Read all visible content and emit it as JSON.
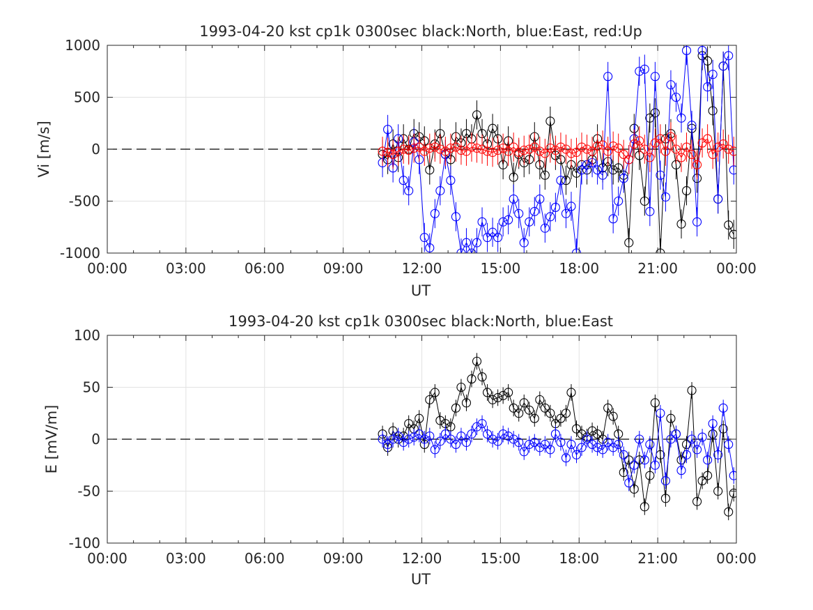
{
  "colors": {
    "north": "#000000",
    "east": "#0000ff",
    "up": "#ff0000",
    "grid": "#e2e2e2",
    "axis": "#262626"
  },
  "chart_data": [
    {
      "type": "scatter",
      "title": "1993-04-20 kst cp1k 0300sec black:North, blue:East, red:Up",
      "xlabel": "UT",
      "ylabel": "Vi [m/s]",
      "xlim": [
        0,
        24
      ],
      "ylim": [
        -1000,
        1000
      ],
      "xticks": [
        0,
        3,
        6,
        9,
        12,
        15,
        18,
        21,
        24
      ],
      "xtick_labels": [
        "00:00",
        "03:00",
        "06:00",
        "09:00",
        "12:00",
        "15:00",
        "18:00",
        "21:00",
        "00:00"
      ],
      "yticks": [
        -1000,
        -500,
        0,
        500,
        1000
      ],
      "ytick_labels": [
        "-1000",
        "-500",
        "0",
        "500",
        "1000"
      ],
      "grid": true,
      "zero_line": "dashed",
      "series": [
        {
          "name": "North",
          "color": "#000000",
          "x": [
            10.5,
            10.7,
            10.9,
            11.1,
            11.3,
            11.5,
            11.7,
            11.9,
            12.1,
            12.3,
            12.5,
            12.7,
            12.9,
            13.1,
            13.3,
            13.5,
            13.7,
            13.9,
            14.1,
            14.3,
            14.5,
            14.7,
            14.9,
            15.1,
            15.3,
            15.5,
            15.7,
            15.9,
            16.1,
            16.3,
            16.5,
            16.7,
            16.9,
            17.1,
            17.3,
            17.5,
            17.7,
            17.9,
            18.1,
            18.3,
            18.5,
            18.7,
            18.9,
            19.1,
            19.3,
            19.5,
            19.7,
            19.9,
            20.1,
            20.3,
            20.5,
            20.7,
            20.9,
            21.1,
            21.3,
            21.5,
            21.7,
            21.9,
            22.1,
            22.3,
            22.5,
            22.7,
            22.9,
            23.1,
            23.3,
            23.5,
            23.7,
            23.9
          ],
          "values": [
            -50,
            -100,
            50,
            -80,
            100,
            0,
            150,
            120,
            80,
            -200,
            50,
            150,
            -50,
            -100,
            120,
            60,
            150,
            100,
            330,
            150,
            50,
            200,
            100,
            -150,
            80,
            -270,
            -50,
            -130,
            -100,
            120,
            -150,
            -250,
            270,
            -60,
            -100,
            -300,
            -150,
            -230,
            -150,
            -200,
            -100,
            100,
            -180,
            -120,
            -200,
            -180,
            -250,
            -900,
            200,
            -60,
            -500,
            300,
            350,
            -1000,
            100,
            150,
            -150,
            -720,
            -400,
            200,
            -280,
            900,
            850,
            370,
            -480,
            800,
            -730,
            -820
          ]
        },
        {
          "name": "East",
          "color": "#0000ff",
          "x": [
            10.5,
            10.7,
            10.9,
            11.1,
            11.3,
            11.5,
            11.7,
            11.9,
            12.1,
            12.3,
            12.5,
            12.7,
            12.9,
            13.1,
            13.3,
            13.5,
            13.7,
            13.9,
            14.1,
            14.3,
            14.5,
            14.7,
            14.9,
            15.1,
            15.3,
            15.5,
            15.7,
            15.9,
            16.1,
            16.3,
            16.5,
            16.7,
            16.9,
            17.1,
            17.3,
            17.5,
            17.7,
            17.9,
            18.1,
            18.3,
            18.5,
            18.7,
            18.9,
            19.1,
            19.3,
            19.5,
            19.7,
            19.9,
            20.1,
            20.3,
            20.5,
            20.7,
            20.9,
            21.1,
            21.3,
            21.5,
            21.7,
            21.9,
            22.1,
            22.3,
            22.5,
            22.7,
            22.9,
            23.1,
            23.3,
            23.5,
            23.7,
            23.9
          ],
          "values": [
            -130,
            190,
            -180,
            100,
            -300,
            -400,
            70,
            -100,
            -850,
            -950,
            -620,
            -400,
            -50,
            -300,
            -650,
            -1000,
            -900,
            -1000,
            -900,
            -700,
            -850,
            -800,
            -850,
            -700,
            -680,
            -480,
            -620,
            -900,
            -700,
            -600,
            -480,
            -760,
            -650,
            -560,
            -300,
            -620,
            -550,
            -1000,
            -200,
            -150,
            -130,
            -200,
            -250,
            700,
            -670,
            -500,
            -280,
            -100,
            100,
            750,
            770,
            -600,
            700,
            -250,
            -460,
            620,
            500,
            300,
            950,
            230,
            -700,
            950,
            600,
            720,
            -480,
            800,
            900,
            -200
          ]
        },
        {
          "name": "Up",
          "color": "#ff0000",
          "x": [
            10.5,
            10.7,
            10.9,
            11.1,
            11.3,
            11.5,
            11.7,
            11.9,
            12.1,
            12.3,
            12.5,
            12.7,
            12.9,
            13.1,
            13.3,
            13.5,
            13.7,
            13.9,
            14.1,
            14.3,
            14.5,
            14.7,
            14.9,
            15.1,
            15.3,
            15.5,
            15.7,
            15.9,
            16.1,
            16.3,
            16.5,
            16.7,
            16.9,
            17.1,
            17.3,
            17.5,
            17.7,
            17.9,
            18.1,
            18.3,
            18.5,
            18.7,
            18.9,
            19.1,
            19.3,
            19.5,
            19.7,
            19.9,
            20.1,
            20.3,
            20.5,
            20.7,
            20.9,
            21.1,
            21.3,
            21.5,
            21.7,
            21.9,
            22.1,
            22.3,
            22.5,
            22.7,
            22.9,
            23.1,
            23.3,
            23.5,
            23.7,
            23.9
          ],
          "values": [
            -20,
            -30,
            -50,
            -20,
            0,
            -10,
            10,
            20,
            -20,
            10,
            20,
            0,
            -20,
            10,
            20,
            -10,
            -20,
            20,
            10,
            0,
            -20,
            -30,
            -10,
            10,
            -20,
            20,
            -30,
            -10,
            0,
            20,
            -20,
            -40,
            10,
            -10,
            20,
            0,
            -40,
            -30,
            20,
            0,
            -20,
            30,
            40,
            -20,
            30,
            10,
            -50,
            -100,
            50,
            80,
            0,
            -80,
            60,
            100,
            -20,
            120,
            0,
            -80,
            20,
            -50,
            -150,
            60,
            100,
            -50,
            20,
            50,
            0,
            -20
          ]
        }
      ]
    },
    {
      "type": "scatter",
      "title": "1993-04-20 kst cp1k 0300sec black:North, blue:East",
      "xlabel": "UT",
      "ylabel": "E [mV/m]",
      "xlim": [
        0,
        24
      ],
      "ylim": [
        -100,
        100
      ],
      "xticks": [
        0,
        3,
        6,
        9,
        12,
        15,
        18,
        21,
        24
      ],
      "xtick_labels": [
        "00:00",
        "03:00",
        "06:00",
        "09:00",
        "12:00",
        "15:00",
        "18:00",
        "21:00",
        "00:00"
      ],
      "yticks": [
        -100,
        -50,
        0,
        50,
        100
      ],
      "ytick_labels": [
        "-100",
        "-50",
        "0",
        "50",
        "100"
      ],
      "grid": true,
      "zero_line": "dashed",
      "series": [
        {
          "name": "North",
          "color": "#000000",
          "x": [
            10.5,
            10.7,
            10.9,
            11.1,
            11.3,
            11.5,
            11.7,
            11.9,
            12.1,
            12.3,
            12.5,
            12.7,
            12.9,
            13.1,
            13.3,
            13.5,
            13.7,
            13.9,
            14.1,
            14.3,
            14.5,
            14.7,
            14.9,
            15.1,
            15.3,
            15.5,
            15.7,
            15.9,
            16.1,
            16.3,
            16.5,
            16.7,
            16.9,
            17.1,
            17.3,
            17.5,
            17.7,
            17.9,
            18.1,
            18.3,
            18.5,
            18.7,
            18.9,
            19.1,
            19.3,
            19.5,
            19.7,
            19.9,
            20.1,
            20.3,
            20.5,
            20.7,
            20.9,
            21.1,
            21.3,
            21.5,
            21.7,
            21.9,
            22.1,
            22.3,
            22.5,
            22.7,
            22.9,
            23.1,
            23.3,
            23.5,
            23.7,
            23.9
          ],
          "values": [
            5,
            -8,
            8,
            0,
            3,
            15,
            10,
            20,
            -5,
            38,
            45,
            18,
            15,
            12,
            30,
            50,
            35,
            58,
            75,
            60,
            45,
            38,
            40,
            42,
            45,
            30,
            25,
            35,
            28,
            20,
            38,
            30,
            25,
            15,
            20,
            25,
            45,
            10,
            5,
            2,
            8,
            5,
            0,
            30,
            22,
            5,
            -32,
            -20,
            -48,
            -20,
            -65,
            -35,
            35,
            -15,
            -57,
            20,
            5,
            -20,
            -5,
            47,
            -60,
            -40,
            -35,
            5,
            -50,
            10,
            -70,
            -52
          ]
        },
        {
          "name": "East",
          "color": "#0000ff",
          "x": [
            10.5,
            10.7,
            10.9,
            11.1,
            11.3,
            11.5,
            11.7,
            11.9,
            12.1,
            12.3,
            12.5,
            12.7,
            12.9,
            13.1,
            13.3,
            13.5,
            13.7,
            13.9,
            14.1,
            14.3,
            14.5,
            14.7,
            14.9,
            15.1,
            15.3,
            15.5,
            15.7,
            15.9,
            16.1,
            16.3,
            16.5,
            16.7,
            16.9,
            17.1,
            17.3,
            17.5,
            17.7,
            17.9,
            18.1,
            18.3,
            18.5,
            18.7,
            18.9,
            19.1,
            19.3,
            19.5,
            19.7,
            19.9,
            20.1,
            20.3,
            20.5,
            20.7,
            20.9,
            21.1,
            21.3,
            21.5,
            21.7,
            21.9,
            22.1,
            22.3,
            22.5,
            22.7,
            22.9,
            23.1,
            23.3,
            23.5,
            23.7,
            23.9
          ],
          "values": [
            0,
            -5,
            0,
            3,
            -3,
            0,
            2,
            5,
            0,
            3,
            -10,
            -2,
            5,
            0,
            -5,
            3,
            -3,
            5,
            12,
            15,
            5,
            0,
            -2,
            5,
            3,
            0,
            -3,
            -12,
            -5,
            -3,
            -8,
            -5,
            -10,
            5,
            -3,
            -18,
            -5,
            -15,
            -8,
            0,
            -5,
            -8,
            -10,
            -3,
            -8,
            -5,
            -15,
            -42,
            -25,
            0,
            -20,
            -5,
            -25,
            25,
            -40,
            0,
            5,
            -30,
            -15,
            0,
            -10,
            2,
            -20,
            15,
            -15,
            30,
            -5,
            -35
          ]
        }
      ]
    }
  ]
}
